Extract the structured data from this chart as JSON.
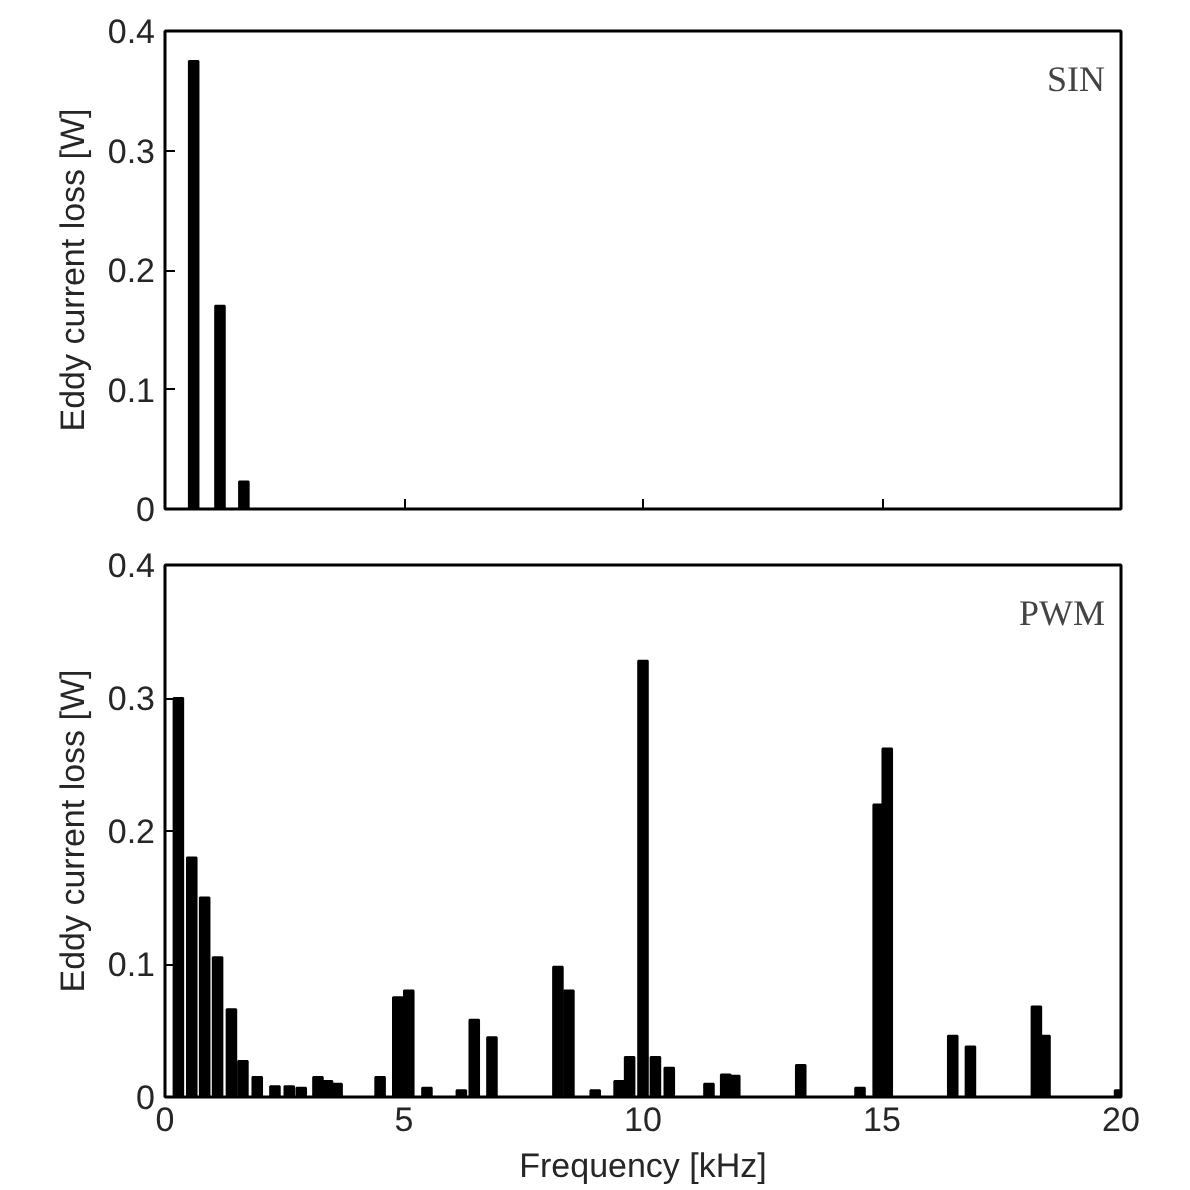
{
  "chart_data": [
    {
      "type": "bar",
      "ylabel": "Eddy current loss [W]",
      "annotations": [
        "SIN"
      ],
      "color": "#000000",
      "x": [
        0.6,
        1.15,
        1.65
      ],
      "values": [
        0.375,
        0.17,
        0.023
      ],
      "xlim": [
        0,
        20
      ],
      "ylim": [
        0,
        0.4
      ],
      "xticks": [
        0,
        5,
        10,
        15,
        20
      ],
      "yticks": [
        0,
        0.1,
        0.2,
        0.3,
        0.4
      ],
      "tick_labels": "y",
      "grid": false
    },
    {
      "type": "bar",
      "ylabel": "Eddy current loss [W]",
      "xlabel": "Frequency [kHz]",
      "annotations": [
        "PWM"
      ],
      "color": "#000000",
      "x": [
        0.28,
        0.56,
        0.83,
        1.1,
        1.39,
        1.63,
        1.93,
        2.3,
        2.6,
        2.85,
        3.2,
        3.4,
        3.6,
        4.5,
        4.87,
        5.1,
        5.48,
        6.2,
        6.47,
        6.84,
        8.22,
        8.45,
        9.0,
        9.5,
        9.72,
        10.0,
        10.26,
        10.55,
        11.38,
        11.73,
        11.92,
        13.3,
        14.54,
        14.92,
        15.11,
        16.48,
        16.85,
        18.23,
        18.41,
        19.97
      ],
      "values": [
        0.3,
        0.18,
        0.15,
        0.105,
        0.066,
        0.027,
        0.015,
        0.008,
        0.008,
        0.007,
        0.015,
        0.012,
        0.01,
        0.015,
        0.075,
        0.08,
        0.007,
        0.005,
        0.058,
        0.045,
        0.098,
        0.08,
        0.005,
        0.012,
        0.03,
        0.328,
        0.03,
        0.022,
        0.01,
        0.017,
        0.016,
        0.024,
        0.007,
        0.22,
        0.262,
        0.046,
        0.038,
        0.068,
        0.046,
        0.005
      ],
      "xlim": [
        0,
        20
      ],
      "ylim": [
        0,
        0.4
      ],
      "xticks": [
        0,
        5,
        10,
        15,
        20
      ],
      "yticks": [
        0,
        0.1,
        0.2,
        0.3,
        0.4
      ],
      "grid": false
    }
  ]
}
